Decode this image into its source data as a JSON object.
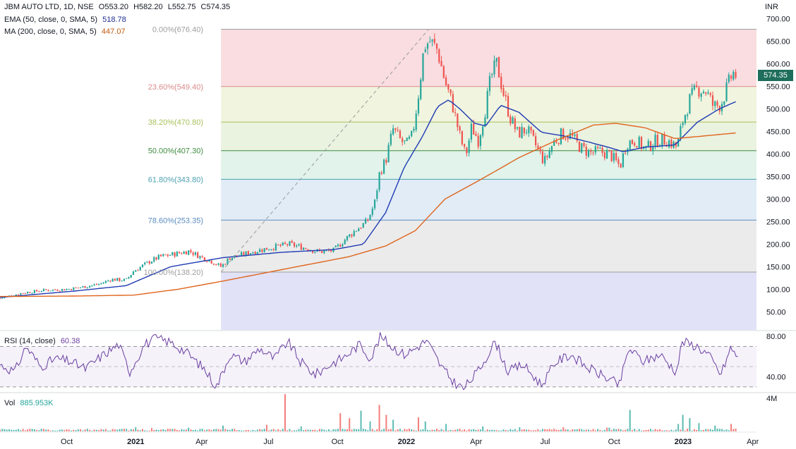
{
  "legend": {
    "symbol": "JBM AUTO LTD, 1D, NSE",
    "open": "O553.20",
    "high": "H582.20",
    "low": "L552.75",
    "close": "C574.35",
    "ema_label": "EMA (50, close, 0, SMA, 5)",
    "ema_value": "518.78",
    "ma_label": "MA (200, close, 0, SMA, 5)",
    "ma_value": "447.07",
    "rsi_label": "RSI (14, close)",
    "rsi_value": "60.38",
    "vol_label": "Vol",
    "vol_value": "885.953K"
  },
  "currency": "INR",
  "last_price_tag": "574.35",
  "colors": {
    "up": "#26a69a",
    "down": "#ef5350",
    "ema": "#1f3bb3",
    "ma": "#e0641c",
    "rsi": "#6a3fa0",
    "text": "#131722"
  },
  "chart_data": [
    {
      "type": "candlestick",
      "x_tick_labels": [
        "Oct",
        "2021",
        "Apr",
        "Jul",
        "Oct",
        "2022",
        "Apr",
        "Jul",
        "Oct",
        "2023",
        "Apr"
      ],
      "y_tick_labels": [
        "700.00",
        "650.00",
        "600.00",
        "550.00",
        "500.00",
        "450.00",
        "400.00",
        "350.00",
        "300.00",
        "250.00",
        "200.00",
        "150.00",
        "100.00",
        "50.00"
      ],
      "ylim": [
        10,
        710
      ],
      "fib_levels": [
        {
          "label": "0.00%(676.40)",
          "price": 676.4
        },
        {
          "label": "23.60%(549.40)",
          "price": 549.4
        },
        {
          "label": "38.20%(470.80)",
          "price": 470.8
        },
        {
          "label": "50.00%(407.30)",
          "price": 407.3
        },
        {
          "label": "61.80%(343.80)",
          "price": 343.8
        },
        {
          "label": "78.60%(253.35)",
          "price": 253.35
        },
        {
          "label": "100.00%(138.20)",
          "price": 138.2
        }
      ],
      "price_path": [
        {
          "t": 0,
          "p": 80
        },
        {
          "t": 30,
          "p": 92
        },
        {
          "t": 60,
          "p": 98
        },
        {
          "t": 90,
          "p": 100
        },
        {
          "t": 115,
          "p": 106
        },
        {
          "t": 135,
          "p": 112
        },
        {
          "t": 150,
          "p": 122
        },
        {
          "t": 170,
          "p": 120
        },
        {
          "t": 180,
          "p": 140
        },
        {
          "t": 200,
          "p": 160
        },
        {
          "t": 215,
          "p": 172
        },
        {
          "t": 235,
          "p": 178
        },
        {
          "t": 255,
          "p": 185
        },
        {
          "t": 270,
          "p": 172
        },
        {
          "t": 285,
          "p": 162
        },
        {
          "t": 298,
          "p": 150
        },
        {
          "t": 310,
          "p": 170
        },
        {
          "t": 325,
          "p": 176
        },
        {
          "t": 345,
          "p": 185
        },
        {
          "t": 365,
          "p": 192
        },
        {
          "t": 390,
          "p": 200
        },
        {
          "t": 410,
          "p": 192
        },
        {
          "t": 430,
          "p": 183
        },
        {
          "t": 450,
          "p": 186
        },
        {
          "t": 465,
          "p": 210
        },
        {
          "t": 480,
          "p": 232
        },
        {
          "t": 495,
          "p": 250
        },
        {
          "t": 505,
          "p": 290
        },
        {
          "t": 512,
          "p": 360
        },
        {
          "t": 520,
          "p": 385
        },
        {
          "t": 530,
          "p": 455
        },
        {
          "t": 540,
          "p": 430
        },
        {
          "t": 548,
          "p": 420
        },
        {
          "t": 556,
          "p": 440
        },
        {
          "t": 564,
          "p": 530
        },
        {
          "t": 572,
          "p": 640
        },
        {
          "t": 580,
          "p": 650
        },
        {
          "t": 590,
          "p": 630
        },
        {
          "t": 600,
          "p": 560
        },
        {
          "t": 610,
          "p": 510
        },
        {
          "t": 620,
          "p": 440
        },
        {
          "t": 628,
          "p": 395
        },
        {
          "t": 636,
          "p": 460
        },
        {
          "t": 645,
          "p": 430
        },
        {
          "t": 655,
          "p": 505
        },
        {
          "t": 662,
          "p": 570
        },
        {
          "t": 670,
          "p": 600
        },
        {
          "t": 678,
          "p": 540
        },
        {
          "t": 688,
          "p": 480
        },
        {
          "t": 698,
          "p": 445
        },
        {
          "t": 710,
          "p": 455
        },
        {
          "t": 722,
          "p": 420
        },
        {
          "t": 734,
          "p": 382
        },
        {
          "t": 746,
          "p": 425
        },
        {
          "t": 758,
          "p": 445
        },
        {
          "t": 770,
          "p": 440
        },
        {
          "t": 782,
          "p": 415
        },
        {
          "t": 795,
          "p": 402
        },
        {
          "t": 808,
          "p": 405
        },
        {
          "t": 822,
          "p": 400
        },
        {
          "t": 836,
          "p": 372
        },
        {
          "t": 845,
          "p": 425
        },
        {
          "t": 858,
          "p": 430
        },
        {
          "t": 870,
          "p": 410
        },
        {
          "t": 885,
          "p": 430
        },
        {
          "t": 900,
          "p": 430
        },
        {
          "t": 913,
          "p": 415
        },
        {
          "t": 920,
          "p": 470
        },
        {
          "t": 930,
          "p": 520
        },
        {
          "t": 940,
          "p": 545
        },
        {
          "t": 952,
          "p": 540
        },
        {
          "t": 962,
          "p": 505
        },
        {
          "t": 972,
          "p": 510
        },
        {
          "t": 980,
          "p": 545
        },
        {
          "t": 988,
          "p": 580
        },
        {
          "t": 995,
          "p": 572
        }
      ],
      "ema_path": [
        {
          "t": 0,
          "p": 82
        },
        {
          "t": 100,
          "p": 96
        },
        {
          "t": 170,
          "p": 108
        },
        {
          "t": 230,
          "p": 150
        },
        {
          "t": 300,
          "p": 170
        },
        {
          "t": 380,
          "p": 182
        },
        {
          "t": 450,
          "p": 188
        },
        {
          "t": 490,
          "p": 200
        },
        {
          "t": 520,
          "p": 270
        },
        {
          "t": 545,
          "p": 370
        },
        {
          "t": 570,
          "p": 440
        },
        {
          "t": 590,
          "p": 505
        },
        {
          "t": 605,
          "p": 520
        },
        {
          "t": 620,
          "p": 500
        },
        {
          "t": 640,
          "p": 468
        },
        {
          "t": 655,
          "p": 462
        },
        {
          "t": 675,
          "p": 508
        },
        {
          "t": 700,
          "p": 492
        },
        {
          "t": 730,
          "p": 448
        },
        {
          "t": 760,
          "p": 440
        },
        {
          "t": 790,
          "p": 428
        },
        {
          "t": 820,
          "p": 415
        },
        {
          "t": 840,
          "p": 405
        },
        {
          "t": 870,
          "p": 415
        },
        {
          "t": 910,
          "p": 420
        },
        {
          "t": 940,
          "p": 470
        },
        {
          "t": 970,
          "p": 500
        },
        {
          "t": 995,
          "p": 518
        }
      ],
      "ma_path": [
        {
          "t": 0,
          "p": 84
        },
        {
          "t": 100,
          "p": 85
        },
        {
          "t": 180,
          "p": 87
        },
        {
          "t": 240,
          "p": 100
        },
        {
          "t": 300,
          "p": 118
        },
        {
          "t": 400,
          "p": 150
        },
        {
          "t": 470,
          "p": 172
        },
        {
          "t": 520,
          "p": 196
        },
        {
          "t": 560,
          "p": 230
        },
        {
          "t": 600,
          "p": 300
        },
        {
          "t": 650,
          "p": 345
        },
        {
          "t": 700,
          "p": 392
        },
        {
          "t": 750,
          "p": 430
        },
        {
          "t": 800,
          "p": 464
        },
        {
          "t": 830,
          "p": 468
        },
        {
          "t": 870,
          "p": 458
        },
        {
          "t": 910,
          "p": 434
        },
        {
          "t": 950,
          "p": 440
        },
        {
          "t": 995,
          "p": 447
        }
      ]
    },
    {
      "type": "line",
      "title": "RSI (14, close)",
      "y_tick_labels": [
        "80.00",
        "40.00"
      ],
      "ylim": [
        25,
        85
      ],
      "bands": [
        70,
        50,
        30
      ],
      "rsi_path": [
        {
          "t": 0,
          "p": 52
        },
        {
          "t": 20,
          "p": 45
        },
        {
          "t": 35,
          "p": 70
        },
        {
          "t": 55,
          "p": 50
        },
        {
          "t": 75,
          "p": 58
        },
        {
          "t": 95,
          "p": 55
        },
        {
          "t": 115,
          "p": 48
        },
        {
          "t": 140,
          "p": 62
        },
        {
          "t": 160,
          "p": 72
        },
        {
          "t": 175,
          "p": 45
        },
        {
          "t": 195,
          "p": 72
        },
        {
          "t": 210,
          "p": 78
        },
        {
          "t": 230,
          "p": 74
        },
        {
          "t": 250,
          "p": 65
        },
        {
          "t": 275,
          "p": 48
        },
        {
          "t": 292,
          "p": 30
        },
        {
          "t": 310,
          "p": 62
        },
        {
          "t": 330,
          "p": 55
        },
        {
          "t": 350,
          "p": 68
        },
        {
          "t": 370,
          "p": 58
        },
        {
          "t": 388,
          "p": 75
        },
        {
          "t": 405,
          "p": 55
        },
        {
          "t": 425,
          "p": 42
        },
        {
          "t": 445,
          "p": 52
        },
        {
          "t": 465,
          "p": 60
        },
        {
          "t": 485,
          "p": 72
        },
        {
          "t": 500,
          "p": 58
        },
        {
          "t": 513,
          "p": 80
        },
        {
          "t": 528,
          "p": 70
        },
        {
          "t": 545,
          "p": 62
        },
        {
          "t": 560,
          "p": 68
        },
        {
          "t": 575,
          "p": 76
        },
        {
          "t": 595,
          "p": 50
        },
        {
          "t": 610,
          "p": 36
        },
        {
          "t": 625,
          "p": 28
        },
        {
          "t": 645,
          "p": 46
        },
        {
          "t": 668,
          "p": 75
        },
        {
          "t": 685,
          "p": 45
        },
        {
          "t": 705,
          "p": 52
        },
        {
          "t": 730,
          "p": 32
        },
        {
          "t": 750,
          "p": 55
        },
        {
          "t": 770,
          "p": 62
        },
        {
          "t": 790,
          "p": 50
        },
        {
          "t": 815,
          "p": 40
        },
        {
          "t": 835,
          "p": 32
        },
        {
          "t": 848,
          "p": 68
        },
        {
          "t": 868,
          "p": 55
        },
        {
          "t": 890,
          "p": 62
        },
        {
          "t": 912,
          "p": 45
        },
        {
          "t": 920,
          "p": 75
        },
        {
          "t": 940,
          "p": 70
        },
        {
          "t": 955,
          "p": 62
        },
        {
          "t": 972,
          "p": 42
        },
        {
          "t": 985,
          "p": 68
        },
        {
          "t": 995,
          "p": 60
        }
      ]
    },
    {
      "type": "bar",
      "title": "Vol",
      "y_tick_labels": [
        "4M"
      ],
      "ylim": [
        0,
        4.6
      ],
      "spikes": [
        {
          "t": 30,
          "v": 0.3
        },
        {
          "t": 90,
          "v": 0.25
        },
        {
          "t": 183,
          "v": 0.5
        },
        {
          "t": 205,
          "v": 0.4
        },
        {
          "t": 255,
          "v": 0.45
        },
        {
          "t": 300,
          "v": 0.7
        },
        {
          "t": 360,
          "v": 0.8
        },
        {
          "t": 384,
          "v": 4.5
        },
        {
          "t": 405,
          "v": 0.6
        },
        {
          "t": 458,
          "v": 2.2
        },
        {
          "t": 470,
          "v": 1.6
        },
        {
          "t": 487,
          "v": 2.5
        },
        {
          "t": 498,
          "v": 1.2
        },
        {
          "t": 512,
          "v": 3.2
        },
        {
          "t": 520,
          "v": 2.0
        },
        {
          "t": 530,
          "v": 1.4
        },
        {
          "t": 565,
          "v": 1.7
        },
        {
          "t": 575,
          "v": 1.2
        },
        {
          "t": 600,
          "v": 0.9
        },
        {
          "t": 650,
          "v": 0.6
        },
        {
          "t": 700,
          "v": 0.5
        },
        {
          "t": 760,
          "v": 0.5
        },
        {
          "t": 820,
          "v": 0.45
        },
        {
          "t": 848,
          "v": 2.6
        },
        {
          "t": 915,
          "v": 0.9
        },
        {
          "t": 921,
          "v": 2.0
        },
        {
          "t": 930,
          "v": 1.6
        },
        {
          "t": 942,
          "v": 1.0
        },
        {
          "t": 965,
          "v": 0.7
        },
        {
          "t": 985,
          "v": 0.9
        },
        {
          "t": 995,
          "v": 0.9
        }
      ]
    }
  ]
}
